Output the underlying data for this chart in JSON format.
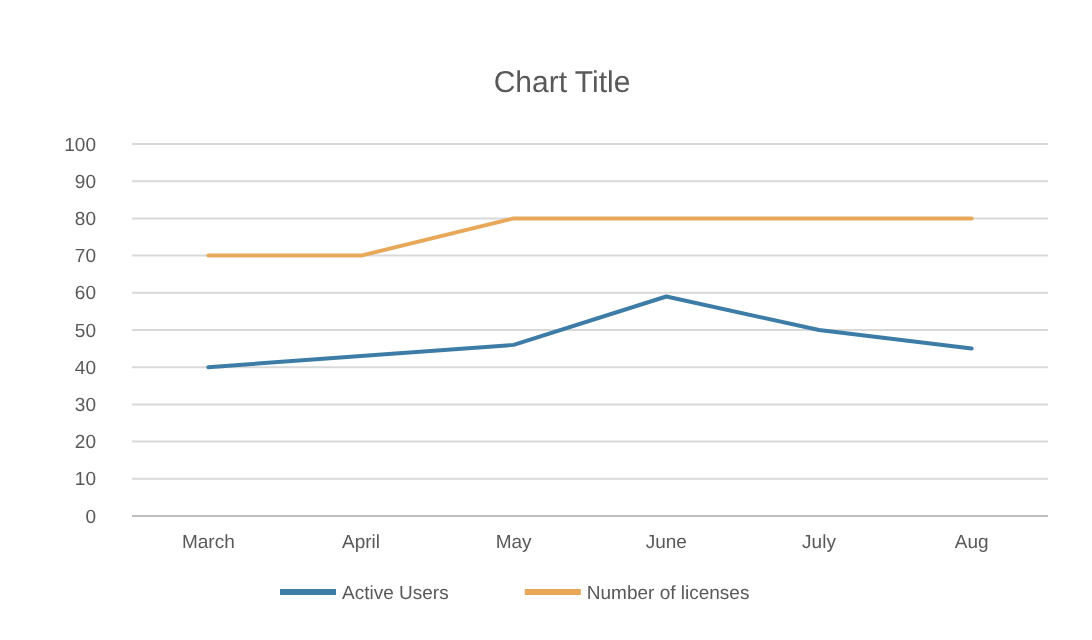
{
  "chart_data": {
    "type": "line",
    "title": "Chart Title",
    "categories": [
      "March",
      "April",
      "May",
      "June",
      "July",
      "Aug"
    ],
    "series": [
      {
        "name": "Active Users",
        "color": "#3d7ca6",
        "values": [
          40,
          43,
          46,
          59,
          50,
          45
        ]
      },
      {
        "name": "Number of licenses",
        "color": "#e8a85a",
        "values": [
          70,
          70,
          80,
          80,
          80,
          80
        ]
      }
    ],
    "ylim": [
      0,
      100
    ],
    "yticks": [
      0,
      10,
      20,
      30,
      40,
      50,
      60,
      70,
      80,
      90,
      100
    ],
    "grid": "y",
    "legend": "bottom",
    "marker": "none",
    "line_style": "solid"
  }
}
